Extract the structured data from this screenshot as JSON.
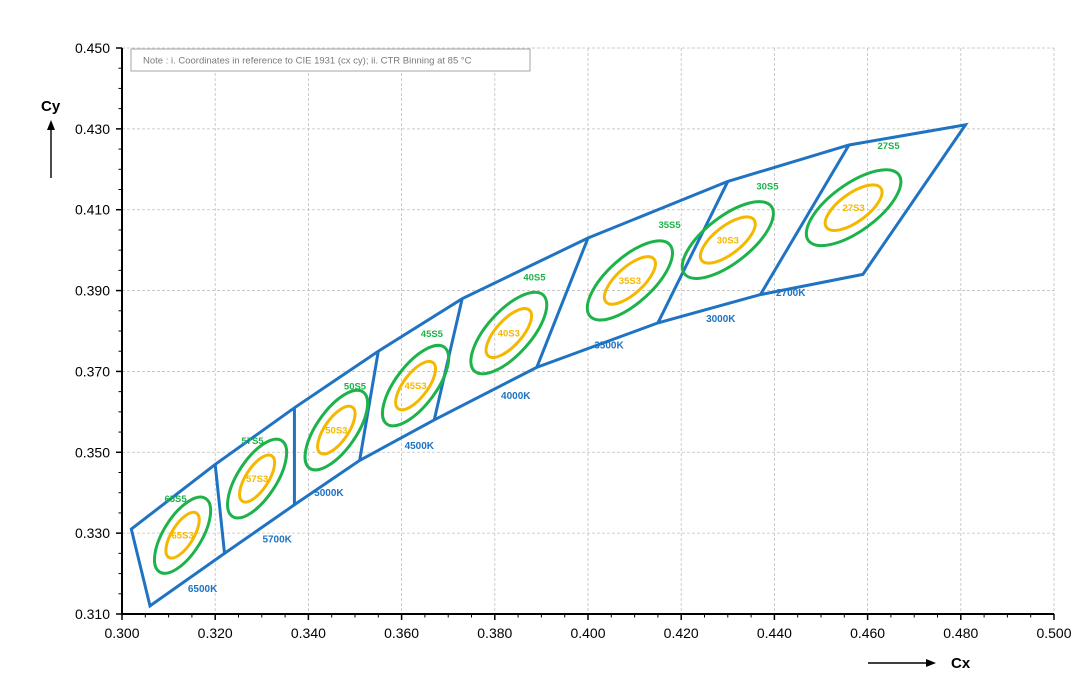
{
  "chart_data": {
    "type": "scatter",
    "xlabel": "Cx",
    "ylabel": "Cy",
    "xlim": [
      0.3,
      0.5
    ],
    "ylim": [
      0.31,
      0.45
    ],
    "x_ticks": [
      "0.300",
      "0.320",
      "0.340",
      "0.360",
      "0.380",
      "0.400",
      "0.420",
      "0.440",
      "0.460",
      "0.480",
      "0.500"
    ],
    "y_ticks": [
      "0.310",
      "0.330",
      "0.350",
      "0.370",
      "0.390",
      "0.410",
      "0.430",
      "0.450"
    ],
    "grid": true,
    "note": "Note : i. Coordinates in reference to CIE 1931 (cx cy); ii. CTR Binning at 85 °C",
    "colors": {
      "boundary": "#1f73c2",
      "ellipse5": "#1db34a",
      "ellipse3": "#f5b800",
      "grid": "#bfbfbf"
    },
    "upper_boundary": [
      [
        0.302,
        0.331
      ],
      [
        0.32,
        0.347
      ],
      [
        0.337,
        0.361
      ],
      [
        0.355,
        0.375
      ],
      [
        0.373,
        0.388
      ],
      [
        0.4,
        0.403
      ],
      [
        0.43,
        0.417
      ],
      [
        0.456,
        0.426
      ],
      [
        0.481,
        0.431
      ]
    ],
    "lower_boundary": [
      [
        0.306,
        0.312
      ],
      [
        0.322,
        0.325
      ],
      [
        0.337,
        0.337
      ],
      [
        0.351,
        0.348
      ],
      [
        0.367,
        0.358
      ],
      [
        0.389,
        0.371
      ],
      [
        0.415,
        0.382
      ],
      [
        0.437,
        0.389
      ],
      [
        0.459,
        0.394
      ],
      [
        0.481,
        0.431
      ]
    ],
    "bin_dividers": [
      [
        [
          0.32,
          0.347
        ],
        [
          0.322,
          0.325
        ]
      ],
      [
        [
          0.337,
          0.361
        ],
        [
          0.337,
          0.337
        ]
      ],
      [
        [
          0.355,
          0.375
        ],
        [
          0.351,
          0.348
        ]
      ],
      [
        [
          0.373,
          0.388
        ],
        [
          0.367,
          0.358
        ]
      ],
      [
        [
          0.4,
          0.403
        ],
        [
          0.389,
          0.371
        ]
      ],
      [
        [
          0.43,
          0.417
        ],
        [
          0.415,
          0.382
        ]
      ],
      [
        [
          0.456,
          0.426
        ],
        [
          0.437,
          0.389
        ]
      ]
    ],
    "bins": [
      {
        "label5": "65S5",
        "label3": "65S3",
        "cct": "6500K",
        "center": [
          0.313,
          0.3295
        ],
        "a5": 0.0093,
        "b5": 0.0047,
        "a3": 0.0056,
        "b3": 0.0027,
        "angle": 58,
        "label5_pos": [
          0.3115,
          0.3377
        ],
        "cct_pos": [
          0.3173,
          0.3155
        ]
      },
      {
        "label5": "57S5",
        "label3": "57S3",
        "cct": "5700K",
        "center": [
          0.329,
          0.3435
        ],
        "a5": 0.0097,
        "b5": 0.0048,
        "a3": 0.0058,
        "b3": 0.0028,
        "angle": 57,
        "label5_pos": [
          0.328,
          0.352
        ],
        "cct_pos": [
          0.3333,
          0.3277
        ]
      },
      {
        "label5": "50S5",
        "label3": "50S3",
        "cct": "5000K",
        "center": [
          0.346,
          0.3555
        ],
        "a5": 0.01,
        "b5": 0.0049,
        "a3": 0.006,
        "b3": 0.0029,
        "angle": 55,
        "label5_pos": [
          0.35,
          0.3655
        ],
        "cct_pos": [
          0.3444,
          0.3392
        ]
      },
      {
        "label5": "45S5",
        "label3": "45S3",
        "cct": "4500K",
        "center": [
          0.363,
          0.3665
        ],
        "a5": 0.0103,
        "b5": 0.005,
        "a3": 0.0062,
        "b3": 0.003,
        "angle": 53,
        "label5_pos": [
          0.3665,
          0.3785
        ],
        "cct_pos": [
          0.3638,
          0.3508
        ]
      },
      {
        "label5": "40S5",
        "label3": "40S3",
        "cct": "4000K",
        "center": [
          0.383,
          0.3795
        ],
        "a5": 0.011,
        "b5": 0.0054,
        "a3": 0.0066,
        "b3": 0.0032,
        "angle": 48,
        "label5_pos": [
          0.3885,
          0.3925
        ],
        "cct_pos": [
          0.3845,
          0.3632
        ]
      },
      {
        "label5": "35S5",
        "label3": "35S3",
        "cct": "3500K",
        "center": [
          0.409,
          0.3925
        ],
        "a5": 0.0115,
        "b5": 0.0056,
        "a3": 0.0069,
        "b3": 0.0033,
        "angle": 42,
        "label5_pos": [
          0.4175,
          0.4055
        ],
        "cct_pos": [
          0.4045,
          0.3757
        ]
      },
      {
        "label5": "30S5",
        "label3": "30S3",
        "cct": "3000K",
        "center": [
          0.43,
          0.4025
        ],
        "a5": 0.0118,
        "b5": 0.0057,
        "a3": 0.0071,
        "b3": 0.0034,
        "angle": 38,
        "label5_pos": [
          0.4385,
          0.415
        ],
        "cct_pos": [
          0.4285,
          0.3822
        ]
      },
      {
        "label5": "27S5",
        "label3": "27S3",
        "cct": "2700K",
        "center": [
          0.457,
          0.4105
        ],
        "a5": 0.012,
        "b5": 0.0058,
        "a3": 0.0072,
        "b3": 0.0035,
        "angle": 36,
        "label5_pos": [
          0.4645,
          0.425
        ],
        "cct_pos": [
          0.4435,
          0.3887
        ]
      }
    ]
  }
}
